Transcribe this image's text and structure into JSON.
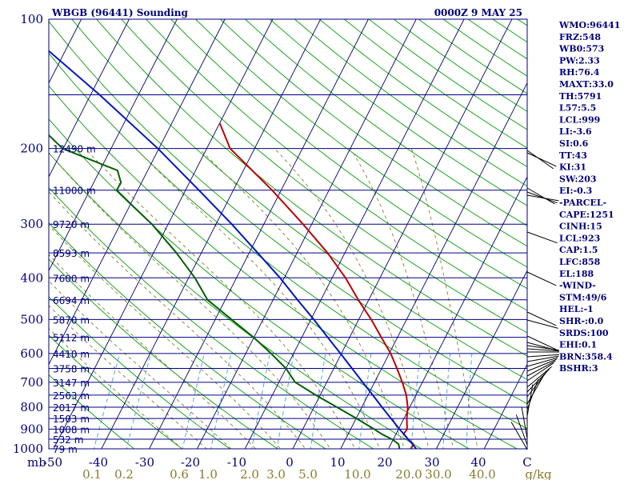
{
  "header": {
    "station": "WBGB (96441) Sounding",
    "time": "0000Z  9 MAY 25"
  },
  "chart_data": {
    "type": "line",
    "title": "WBGB (96441) Sounding",
    "subtitle": "0000Z  9 MAY 25",
    "xlabel": "",
    "ylabel": "mb",
    "pressure_ticks": [
      "100",
      "200",
      "300",
      "400",
      "500",
      "600",
      "700",
      "800",
      "900",
      "1000"
    ],
    "temp_ticks": [
      "-50",
      "-40",
      "-30",
      "-20",
      "-10",
      "0",
      "10",
      "20",
      "30",
      "40",
      "C"
    ],
    "mixing_ratio_labels": [
      "0.1",
      "0.2",
      "0.6",
      "1.0",
      "2.0",
      "3.0",
      "5.0",
      "10.0",
      "20.0",
      "30.0",
      "40.0",
      "g/kg"
    ],
    "mixing_ratio_values": [
      0.1,
      0.2,
      0.6,
      1.0,
      2.0,
      3.0,
      5.0,
      10.0,
      20.0,
      30.0,
      40.0
    ],
    "height_levels": [
      {
        "p": 200,
        "label": "12490 m"
      },
      {
        "p": 250,
        "label": "11000 m"
      },
      {
        "p": 300,
        "label": "9720 m"
      },
      {
        "p": 350,
        "label": "8593 m"
      },
      {
        "p": 400,
        "label": "7600 m"
      },
      {
        "p": 450,
        "label": "6694 m"
      },
      {
        "p": 500,
        "label": "5870 m"
      },
      {
        "p": 550,
        "label": "5112 m"
      },
      {
        "p": 600,
        "label": "4410 m"
      },
      {
        "p": 650,
        "label": "3758 m"
      },
      {
        "p": 700,
        "label": "3147 m"
      },
      {
        "p": 750,
        "label": "2563 m"
      },
      {
        "p": 800,
        "label": "2017 m"
      },
      {
        "p": 850,
        "label": "1503 m"
      },
      {
        "p": 900,
        "label": "1008 m"
      },
      {
        "p": 950,
        "label": "532 m"
      },
      {
        "p": 1000,
        "label": "79 m"
      }
    ],
    "series": [
      {
        "color": "#c00000",
        "points": [
          [
            1000,
            24.7
          ],
          [
            975,
            24.7
          ],
          [
            950,
            23.1
          ],
          [
            925,
            21.6
          ],
          [
            900,
            21.8
          ],
          [
            850,
            20.6
          ],
          [
            800,
            19.6
          ],
          [
            750,
            18.0
          ],
          [
            700,
            15.8
          ],
          [
            650,
            13.2
          ],
          [
            600,
            10.3
          ],
          [
            550,
            6.6
          ],
          [
            500,
            2.6
          ],
          [
            450,
            -2.2
          ],
          [
            400,
            -7.2
          ],
          [
            350,
            -13.6
          ],
          [
            300,
            -21.8
          ],
          [
            250,
            -31.9
          ],
          [
            200,
            -45.1
          ],
          [
            175,
            -49.9
          ]
        ]
      },
      {
        "color": "#006000",
        "points": [
          [
            1000,
            22.3
          ],
          [
            975,
            21.6
          ],
          [
            950,
            19.7
          ],
          [
            925,
            17.1
          ],
          [
            900,
            14.9
          ],
          [
            850,
            10.1
          ],
          [
            800,
            4.8
          ],
          [
            750,
            -0.9
          ],
          [
            700,
            -6.6
          ],
          [
            650,
            -10.0
          ],
          [
            600,
            -14.7
          ],
          [
            550,
            -20.1
          ],
          [
            500,
            -26.6
          ],
          [
            450,
            -33.7
          ],
          [
            400,
            -38.7
          ],
          [
            350,
            -45.2
          ],
          [
            300,
            -53.4
          ],
          [
            275,
            -58.7
          ],
          [
            250,
            -64.4
          ],
          [
            240,
            -64.3
          ],
          [
            225,
            -66.3
          ],
          [
            200,
            -80.1
          ],
          [
            175,
            -88.2
          ]
        ]
      },
      {
        "color": "#0018c0",
        "points": [
          [
            1000,
            25.8
          ],
          [
            975,
            24.5
          ],
          [
            950,
            23.1
          ],
          [
            925,
            21.7
          ],
          [
            900,
            20.2
          ],
          [
            850,
            17.3
          ],
          [
            800,
            14.2
          ],
          [
            750,
            11.0
          ],
          [
            700,
            7.5
          ],
          [
            650,
            3.8
          ],
          [
            600,
            -0.2
          ],
          [
            550,
            -4.6
          ],
          [
            500,
            -9.4
          ],
          [
            450,
            -14.9
          ],
          [
            400,
            -20.9
          ],
          [
            350,
            -28.2
          ],
          [
            300,
            -36.7
          ],
          [
            250,
            -47.2
          ],
          [
            200,
            -60.2
          ],
          [
            150,
            -78.1
          ],
          [
            110,
            -98.3
          ]
        ]
      }
    ],
    "ylim": [
      1000,
      100
    ],
    "xlim": [
      -50,
      50
    ]
  },
  "indices": [
    "WMO:96441",
    "FRZ:548",
    "WB0:573",
    "PW:2.33",
    "RH:76.4",
    "MAXT:33.0",
    "TH:5791",
    "L57:5.5",
    "LCL:999",
    "LI:-3.6",
    "SI:0.6",
    "TT:43",
    "KI:31",
    "SW:203",
    "EI:-0.3",
    "-PARCEL-",
    "CAPE:1251",
    "CINH:15",
    "LCL:923",
    "CAP:1.5",
    "LFC:858",
    "EL:188",
    "-WIND-",
    "STM:49/6",
    "HEL:-1",
    "SHR-:0.0",
    "SRDS:100",
    "EHI:0.1",
    "BRN:358.4",
    "BSHR:3"
  ],
  "colors": {
    "frame": "#000080",
    "isobar": "#000080",
    "isotherm": "#000080",
    "dry_adiabat": "#00a000",
    "moist_adiabat": "#8b7a2b",
    "mixing_ratio": "#3aa0d8",
    "temperature": "#c00000",
    "dewpoint": "#006000",
    "parcel": "#0018c0",
    "wind_barb": "#000000"
  }
}
